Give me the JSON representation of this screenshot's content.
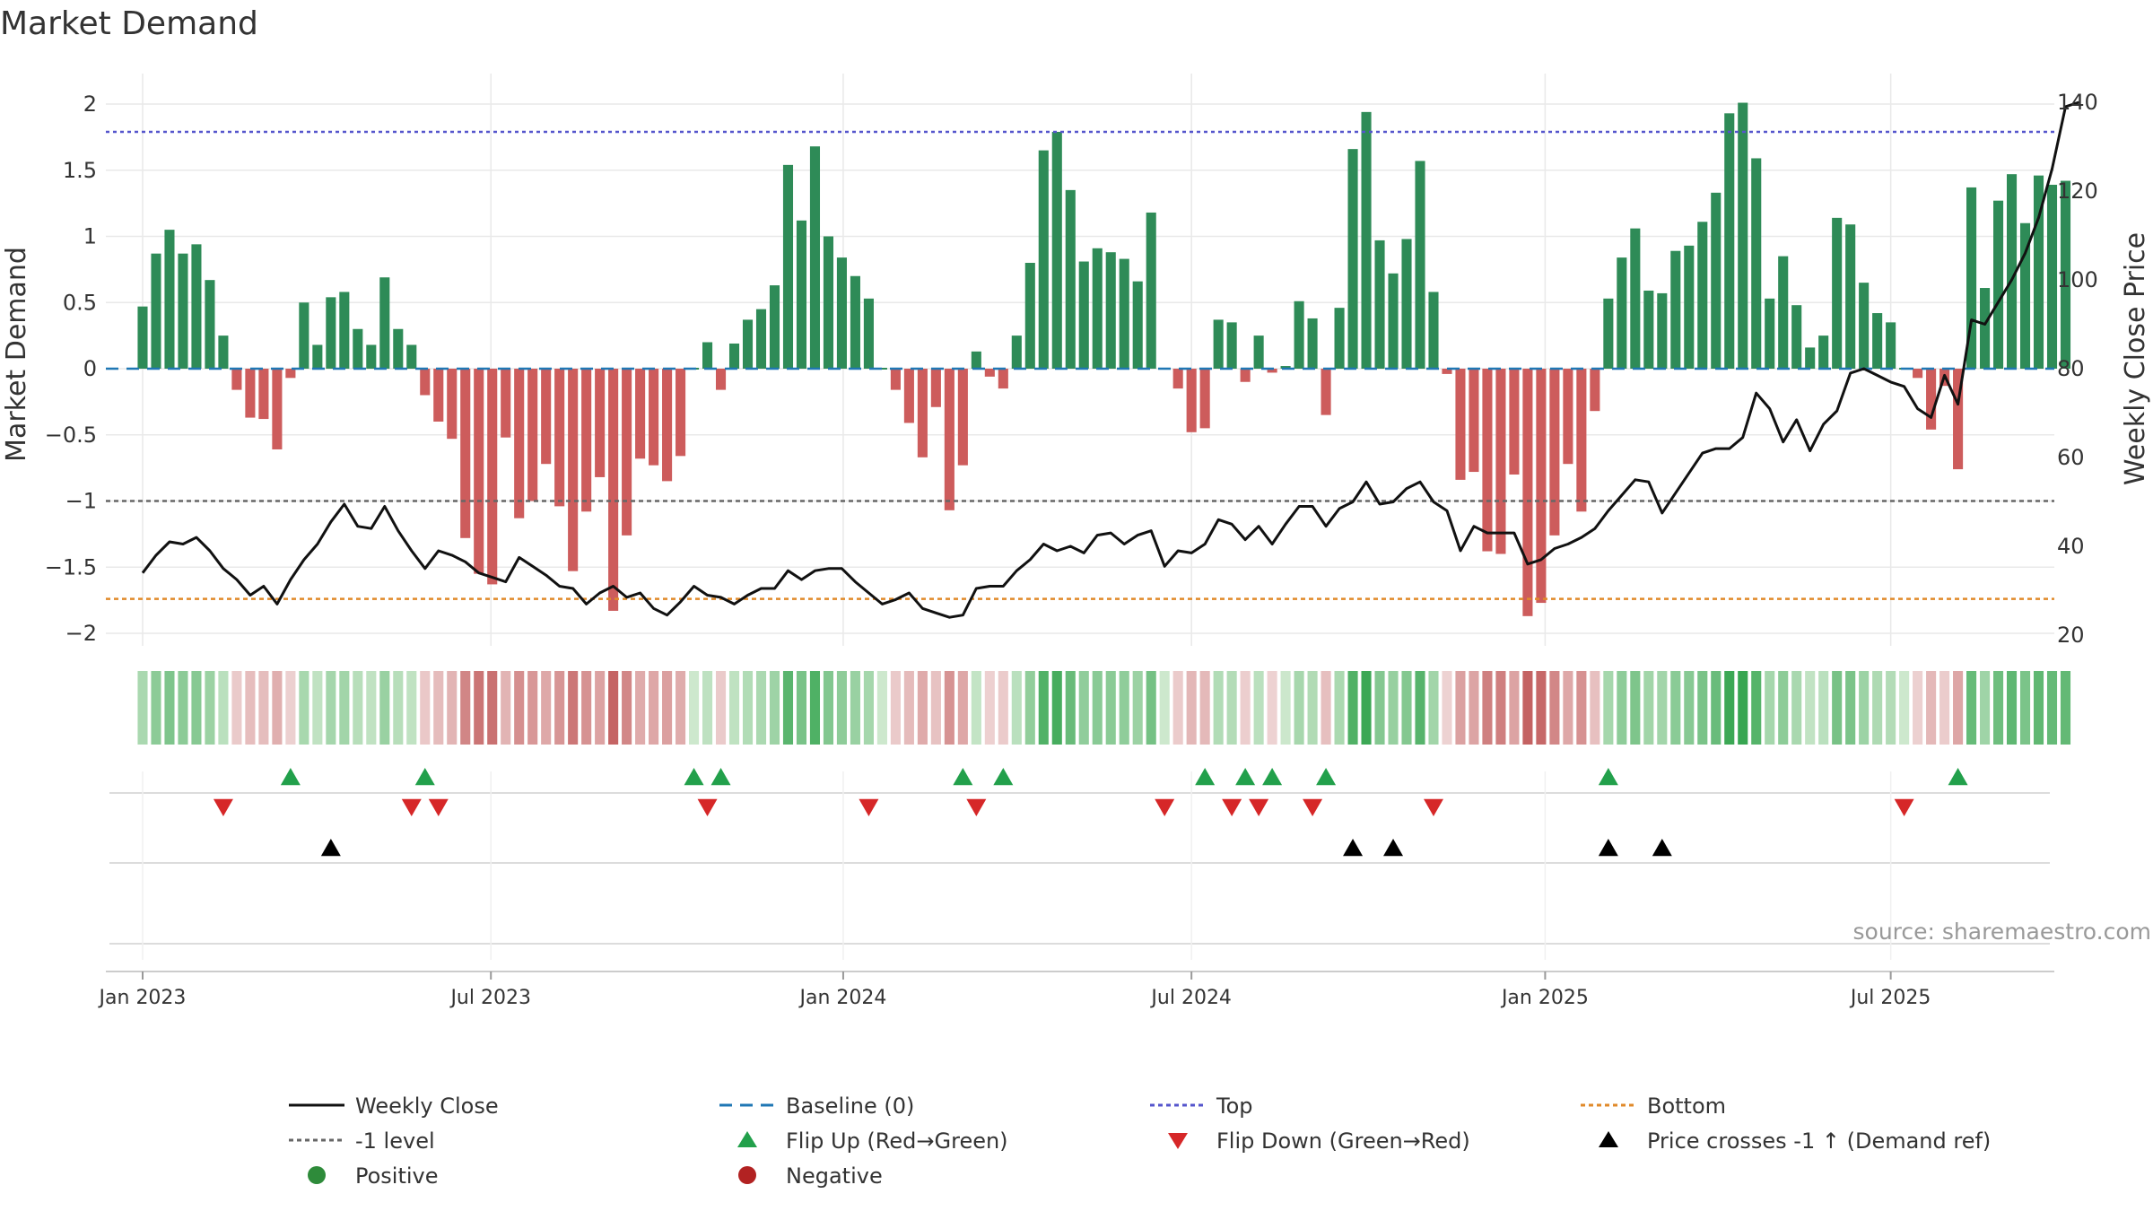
{
  "chart_data": {
    "type": "bar",
    "title": "Market Demand",
    "ylabel": "Market Demand",
    "y2label": "Weekly Close Price",
    "ylim": [
      -2.2,
      2.3
    ],
    "y2lim": [
      17,
      145
    ],
    "yticks": [
      {
        "value": 2,
        "label": "2"
      },
      {
        "value": 1.5,
        "label": "1.5"
      },
      {
        "value": 1,
        "label": "1"
      },
      {
        "value": 0.5,
        "label": "0.5"
      },
      {
        "value": 0,
        "label": "0"
      },
      {
        "value": -0.5,
        "label": "−0.5"
      },
      {
        "value": -1,
        "label": "−1"
      },
      {
        "value": -1.5,
        "label": "−1.5"
      },
      {
        "value": -2,
        "label": "−2"
      }
    ],
    "y2ticks": [
      {
        "value": 140,
        "label": "140"
      },
      {
        "value": 120,
        "label": "120"
      },
      {
        "value": 100,
        "label": "100"
      },
      {
        "value": 80,
        "label": "80"
      },
      {
        "value": 60,
        "label": "60"
      },
      {
        "value": 40,
        "label": "40"
      },
      {
        "value": 20,
        "label": "20"
      }
    ],
    "x_start_week": -1.2,
    "x_end_week": 142.5,
    "xticks": [
      {
        "week": 0,
        "label": "Jan 2023"
      },
      {
        "week": 25.9,
        "label": "Jul 2023"
      },
      {
        "week": 52.1,
        "label": "Jan 2024"
      },
      {
        "week": 78,
        "label": "Jul 2024"
      },
      {
        "week": 104.3,
        "label": "Jan 2025"
      },
      {
        "week": 130,
        "label": "Jul 2025"
      }
    ],
    "reference_lines": {
      "top": 1.79,
      "bottom": -1.74,
      "minus_one": -1,
      "baseline": 0
    },
    "demand": [
      0.47,
      0.87,
      1.05,
      0.87,
      0.94,
      0.67,
      0.25,
      -0.16,
      -0.37,
      -0.38,
      -0.61,
      -0.07,
      0.5,
      0.18,
      0.54,
      0.58,
      0.3,
      0.18,
      0.69,
      0.3,
      0.18,
      -0.2,
      -0.4,
      -0.53,
      -1.28,
      -1.55,
      -1.63,
      -0.52,
      -1.13,
      -1.0,
      -0.72,
      -1.04,
      -1.53,
      -1.08,
      -0.82,
      -1.83,
      -1.26,
      -0.68,
      -0.73,
      -0.85,
      -0.66,
      0.0,
      0.2,
      -0.16,
      0.19,
      0.37,
      0.45,
      0.63,
      1.54,
      1.12,
      1.68,
      1.0,
      0.84,
      0.7,
      0.53,
      0.0,
      -0.16,
      -0.41,
      -0.67,
      -0.29,
      -1.07,
      -0.73,
      0.13,
      -0.06,
      -0.15,
      0.25,
      0.8,
      1.65,
      1.79,
      1.35,
      0.81,
      0.91,
      0.88,
      0.83,
      0.66,
      1.18,
      0.0,
      -0.15,
      -0.48,
      -0.45,
      0.37,
      0.35,
      -0.1,
      0.25,
      -0.03,
      0.02,
      0.51,
      0.38,
      -0.35,
      0.46,
      1.66,
      1.94,
      0.97,
      0.72,
      0.98,
      1.57,
      0.58,
      -0.04,
      -0.84,
      -0.78,
      -1.38,
      -1.4,
      -0.8,
      -1.87,
      -1.77,
      -1.26,
      -0.72,
      -1.08,
      -0.32,
      0.53,
      0.84,
      1.06,
      0.59,
      0.57,
      0.89,
      0.93,
      1.11,
      1.33,
      1.93,
      2.01,
      1.59,
      0.53,
      0.85,
      0.48,
      0.16,
      0.25,
      1.14,
      1.09,
      0.65,
      0.42,
      0.35,
      0.0,
      -0.07,
      -0.46,
      -0.13,
      -0.76,
      1.37,
      0.61,
      1.27,
      1.47,
      1.1,
      1.46,
      1.39,
      1.42
    ],
    "weekly_close": [
      34,
      38,
      41,
      40.5,
      42,
      39,
      35,
      32.5,
      29,
      31,
      27,
      32.5,
      37,
      40.5,
      45.5,
      49.5,
      44.5,
      44,
      49,
      43.5,
      39,
      35,
      39,
      38,
      36.5,
      34,
      33,
      32,
      37.5,
      35.5,
      33.5,
      31,
      30.5,
      27,
      29.5,
      31,
      28.5,
      29.5,
      26,
      24.5,
      27.5,
      31,
      29,
      28.5,
      27,
      29,
      30.5,
      30.5,
      34.5,
      32.5,
      34.5,
      35,
      35,
      32,
      29.5,
      27,
      28,
      29.5,
      26,
      25,
      24,
      24.5,
      30.5,
      31,
      31,
      34.5,
      37,
      40.5,
      39,
      40,
      38.5,
      42.5,
      43,
      40.5,
      42.5,
      43.5,
      35.5,
      39,
      38.5,
      40.5,
      46,
      45,
      41.5,
      44.5,
      40.5,
      45,
      49,
      49,
      44.5,
      48.5,
      50,
      54.5,
      49.5,
      50,
      53,
      54.5,
      50,
      48,
      39,
      44.5,
      43,
      43,
      43,
      36,
      37,
      39.5,
      40.5,
      42,
      44,
      48,
      51.5,
      55,
      54.5,
      47.5,
      52,
      56.5,
      61,
      62,
      62,
      64.5,
      74.5,
      71,
      63.5,
      68.5,
      61.5,
      67.5,
      70.5,
      79,
      80,
      78.5,
      77,
      76,
      71,
      69,
      78.5,
      72,
      91,
      90,
      95,
      100,
      106,
      114,
      125,
      139,
      140
    ],
    "flip_up_weeks": [
      11,
      21,
      41,
      43,
      61,
      64,
      79,
      82,
      84,
      88,
      109,
      135
    ],
    "flip_down_weeks": [
      6,
      20,
      22,
      42,
      54,
      62,
      76,
      81,
      83,
      87,
      96,
      131
    ],
    "price_cross_weeks": [
      14,
      90,
      93,
      109,
      113
    ],
    "heat_strip": "Positive / Negative demand intensity by week (same series as bars)",
    "legend": [
      {
        "key": "weekly_close",
        "label": "Weekly Close",
        "marker": "line-solid",
        "color": "#111111"
      },
      {
        "key": "baseline",
        "label": "Baseline (0)",
        "marker": "line-dash",
        "color": "#1f77b4"
      },
      {
        "key": "top",
        "label": "Top",
        "marker": "line-dot",
        "color": "#5555cc"
      },
      {
        "key": "bottom",
        "label": "Bottom",
        "marker": "line-dot",
        "color": "#e08a2a"
      },
      {
        "key": "minus_one",
        "label": "-1 level",
        "marker": "line-dot",
        "color": "#666666"
      },
      {
        "key": "flip_up",
        "label": "Flip Up (Red→Green)",
        "marker": "triangle-up",
        "color": "#22a04b"
      },
      {
        "key": "flip_down",
        "label": "Flip Down (Green→Red)",
        "marker": "triangle-down",
        "color": "#d62728"
      },
      {
        "key": "price_cross",
        "label": "Price crosses -1 ↑ (Demand ref)",
        "marker": "triangle-up",
        "color": "#000000"
      },
      {
        "key": "positive",
        "label": "Positive",
        "marker": "circle",
        "color": "#2e8b3a"
      },
      {
        "key": "negative",
        "label": "Negative",
        "marker": "circle",
        "color": "#b22222"
      }
    ]
  },
  "colors": {
    "positive_bar": "#2e8b57",
    "negative_bar": "#cd5c5c",
    "close_line": "#111111",
    "baseline": "#1f77b4",
    "top": "#5555cc",
    "bottom": "#e08a2a",
    "minus_one": "#666666",
    "flip_up": "#22a04b",
    "flip_down": "#d62728",
    "price_cross": "#000000",
    "grid": "#e9e9e9"
  },
  "source": "source: sharemaestro.com"
}
